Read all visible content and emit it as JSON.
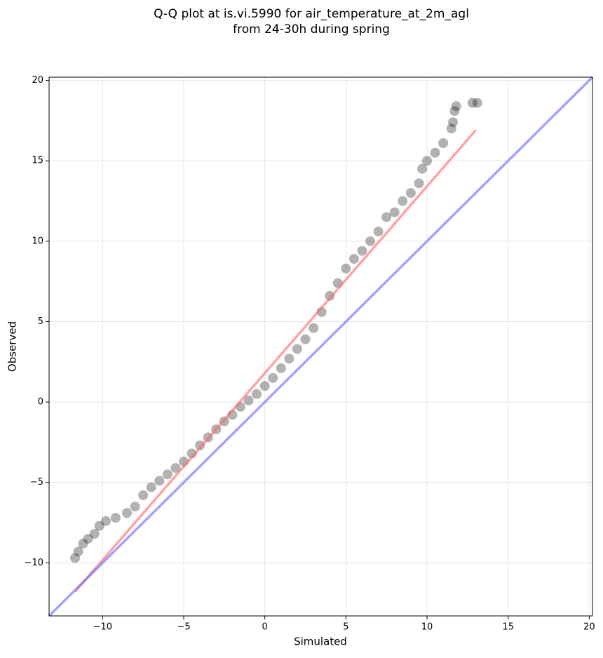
{
  "chart_data": {
    "type": "scatter",
    "title": "Q-Q plot at is.vi.5990 for air_temperature_at_2m_agl",
    "subtitle": "from 24-30h during spring",
    "x_label": "Simulated",
    "y_label": "Observed",
    "xlim": [
      -13.3,
      20.2
    ],
    "ylim": [
      -13.3,
      20.2
    ],
    "xticks": [
      {
        "value": -10,
        "label": "−10"
      },
      {
        "value": -5,
        "label": "−5"
      },
      0,
      5,
      10,
      15,
      20
    ],
    "yticks": [
      {
        "value": -10,
        "label": "−10"
      },
      {
        "value": -5,
        "label": "−5"
      },
      0,
      5,
      10,
      15,
      20
    ],
    "grid": true,
    "color": "#000000",
    "x": [
      -11.7,
      -11.5,
      -11.2,
      -10.9,
      -10.5,
      -10.2,
      -9.8,
      -9.2,
      -8.5,
      -8,
      -7.5,
      -7,
      -6.5,
      -6,
      -5.5,
      -5,
      -4.5,
      -4,
      -3.5,
      -3,
      -2.5,
      -2,
      -1.5,
      -1,
      -0.5,
      0,
      0.5,
      1,
      1.5,
      2,
      2.5,
      3,
      3.5,
      4,
      4.5,
      5,
      5.5,
      6,
      6.5,
      7,
      7.5,
      8,
      8.5,
      9,
      9.5,
      9.7,
      10,
      10.5,
      11,
      11.5,
      11.6,
      11.7,
      11.8,
      12.8,
      13.1
    ],
    "values": [
      -9.7,
      -9.3,
      -8.8,
      -8.5,
      -8.2,
      -7.7,
      -7.4,
      -7.2,
      -6.9,
      -6.5,
      -5.8,
      -5.3,
      -4.9,
      -4.5,
      -4.1,
      -3.7,
      -3.2,
      -2.7,
      -2.2,
      -1.7,
      -1.2,
      -0.8,
      -0.3,
      0.1,
      0.5,
      1.0,
      1.5,
      2.1,
      2.7,
      3.3,
      3.9,
      4.6,
      5.6,
      6.6,
      7.4,
      8.3,
      8.9,
      9.4,
      10,
      10.6,
      11.5,
      11.8,
      12.5,
      13,
      13.6,
      14.5,
      15,
      15.5,
      16.1,
      17,
      17.4,
      18.1,
      18.4,
      18.6,
      18.6
    ],
    "lines": [
      {
        "color": "#ff6666",
        "x": [
          -11.7,
          13
        ],
        "values": [
          -11.8,
          16.9
        ]
      },
      {
        "color": "#6666ff",
        "x": [
          -13.3,
          20.2
        ],
        "values": [
          -13.3,
          20.2
        ]
      }
    ]
  }
}
